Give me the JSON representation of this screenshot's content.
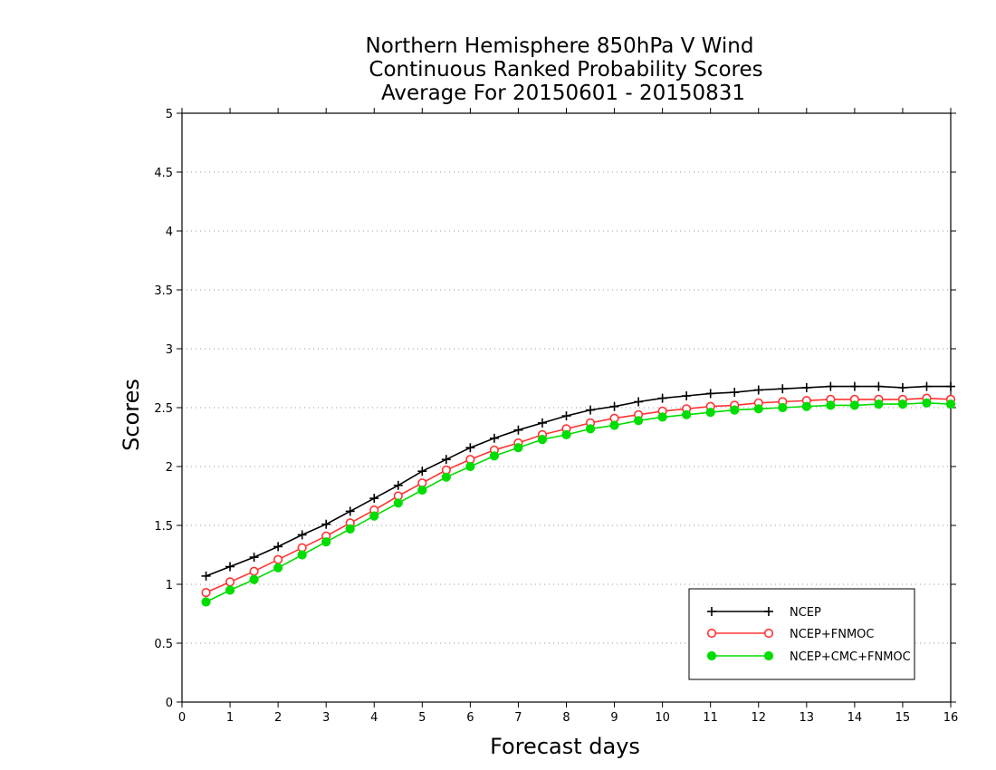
{
  "chart_data": {
    "type": "line",
    "title_lines": [
      "Northern Hemisphere 850hPa V Wind",
      "Continuous Ranked Probability Scores",
      "Average For 20150601 - 20150831"
    ],
    "xlabel": "Forecast days",
    "ylabel": "Scores",
    "xlim": [
      0,
      16
    ],
    "ylim": [
      0,
      5
    ],
    "x_ticks": [
      0,
      1,
      2,
      3,
      4,
      5,
      6,
      7,
      8,
      9,
      10,
      11,
      12,
      13,
      14,
      15,
      16
    ],
    "y_ticks": [
      0,
      0.5,
      1,
      1.5,
      2,
      2.5,
      3,
      3.5,
      4,
      4.5,
      5
    ],
    "y_tick_labels": [
      "0",
      "0.5",
      "1",
      "1.5",
      "2",
      "2.5",
      "3",
      "3.5",
      "4",
      "4.5",
      "5"
    ],
    "grid": "horizontal dotted",
    "legend_position": "bottom-right",
    "x": [
      0.5,
      1,
      1.5,
      2,
      2.5,
      3,
      3.5,
      4,
      4.5,
      5,
      5.5,
      6,
      6.5,
      7,
      7.5,
      8,
      8.5,
      9,
      9.5,
      10,
      10.5,
      11,
      11.5,
      12,
      12.5,
      13,
      13.5,
      14,
      14.5,
      15,
      15.5,
      16
    ],
    "series": [
      {
        "name": "NCEP",
        "color": "#000000",
        "marker": "plus",
        "values": [
          1.07,
          1.15,
          1.23,
          1.32,
          1.42,
          1.51,
          1.62,
          1.73,
          1.84,
          1.96,
          2.06,
          2.16,
          2.24,
          2.31,
          2.37,
          2.43,
          2.48,
          2.51,
          2.55,
          2.58,
          2.6,
          2.62,
          2.63,
          2.65,
          2.66,
          2.67,
          2.68,
          2.68,
          2.68,
          2.67,
          2.68,
          2.68
        ]
      },
      {
        "name": "NCEP+FNMOC",
        "color": "#ff3333",
        "marker": "open-circle",
        "values": [
          0.93,
          1.02,
          1.11,
          1.21,
          1.31,
          1.41,
          1.52,
          1.63,
          1.75,
          1.86,
          1.97,
          2.06,
          2.14,
          2.2,
          2.27,
          2.32,
          2.37,
          2.41,
          2.44,
          2.47,
          2.49,
          2.51,
          2.52,
          2.54,
          2.55,
          2.56,
          2.57,
          2.57,
          2.57,
          2.57,
          2.58,
          2.57
        ]
      },
      {
        "name": "NCEP+CMC+FNMOC",
        "color": "#00dd00",
        "marker": "filled-circle",
        "values": [
          0.85,
          0.95,
          1.04,
          1.14,
          1.25,
          1.36,
          1.47,
          1.58,
          1.69,
          1.8,
          1.91,
          2.0,
          2.09,
          2.16,
          2.23,
          2.27,
          2.32,
          2.35,
          2.39,
          2.42,
          2.44,
          2.46,
          2.48,
          2.49,
          2.5,
          2.51,
          2.52,
          2.52,
          2.53,
          2.53,
          2.54,
          2.53
        ]
      }
    ]
  }
}
